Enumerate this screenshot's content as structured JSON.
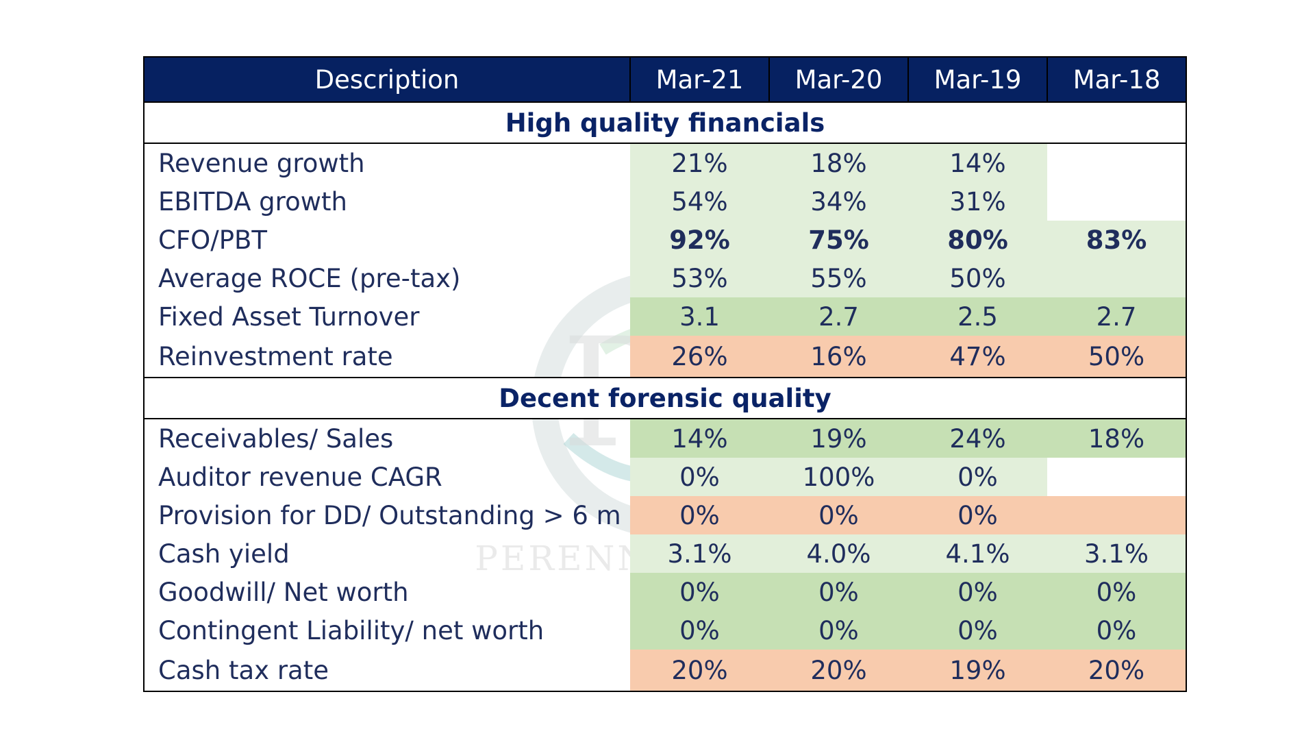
{
  "table": {
    "headers": [
      "Description",
      "Mar-21",
      "Mar-20",
      "Mar-19",
      "Mar-18"
    ],
    "sections": [
      {
        "title": "High quality financials",
        "rows": [
          {
            "label": "Revenue growth",
            "values": [
              "21%",
              "18%",
              "14%",
              ""
            ],
            "colors": [
              "#e2efda",
              "#e2efda",
              "#e2efda",
              "#ffffff"
            ]
          },
          {
            "label": "EBITDA growth",
            "values": [
              "54%",
              "34%",
              "31%",
              ""
            ],
            "colors": [
              "#e2efda",
              "#e2efda",
              "#e2efda",
              "#ffffff"
            ]
          },
          {
            "label": "CFO/PBT",
            "values": [
              "92%",
              "75%",
              "80%",
              "83%"
            ],
            "colors": [
              "#e2efda",
              "#e2efda",
              "#e2efda",
              "#e2efda"
            ],
            "bold": true
          },
          {
            "label": "Average ROCE (pre-tax)",
            "values": [
              "53%",
              "55%",
              "50%",
              ""
            ],
            "colors": [
              "#e2efda",
              "#e2efda",
              "#e2efda",
              "#e2efda"
            ]
          },
          {
            "label": "Fixed Asset Turnover",
            "values": [
              "3.1",
              "2.7",
              "2.5",
              "2.7"
            ],
            "colors": [
              "#c6e0b4",
              "#c6e0b4",
              "#c6e0b4",
              "#c6e0b4"
            ]
          },
          {
            "label": "Reinvestment rate",
            "values": [
              "26%",
              "16%",
              "47%",
              "50%"
            ],
            "colors": [
              "#f8cbad",
              "#f8cbad",
              "#f8cbad",
              "#f8cbad"
            ]
          }
        ]
      },
      {
        "title": "Decent forensic quality",
        "rows": [
          {
            "label": "Receivables/ Sales",
            "values": [
              "14%",
              "19%",
              "24%",
              "18%"
            ],
            "colors": [
              "#c6e0b4",
              "#c6e0b4",
              "#c6e0b4",
              "#c6e0b4"
            ]
          },
          {
            "label": "Auditor revenue CAGR",
            "values": [
              "0%",
              "100%",
              "0%",
              ""
            ],
            "colors": [
              "#e2efda",
              "#e2efda",
              "#e2efda",
              "#ffffff"
            ]
          },
          {
            "label": "Provision for DD/ Outstanding > 6 m",
            "values": [
              "0%",
              "0%",
              "0%",
              ""
            ],
            "colors": [
              "#f8cbad",
              "#f8cbad",
              "#f8cbad",
              "#f8cbad"
            ]
          },
          {
            "label": "Cash yield",
            "values": [
              "3.1%",
              "4.0%",
              "4.1%",
              "3.1%"
            ],
            "colors": [
              "#e2efda",
              "#e2efda",
              "#e2efda",
              "#e2efda"
            ]
          },
          {
            "label": "Goodwill/ Net worth",
            "values": [
              "0%",
              "0%",
              "0%",
              "0%"
            ],
            "colors": [
              "#c6e0b4",
              "#c6e0b4",
              "#c6e0b4",
              "#c6e0b4"
            ]
          },
          {
            "label": "Contingent Liability/ net worth",
            "values": [
              "0%",
              "0%",
              "0%",
              "0%"
            ],
            "colors": [
              "#c6e0b4",
              "#c6e0b4",
              "#c6e0b4",
              "#c6e0b4"
            ]
          },
          {
            "label": "Cash tax rate",
            "values": [
              "20%",
              "20%",
              "19%",
              "20%"
            ],
            "colors": [
              "#f8cbad",
              "#f8cbad",
              "#f8cbad",
              "#f8cbad"
            ]
          }
        ]
      }
    ]
  },
  "watermark": {
    "text": "PERENNIAL FUND",
    "monogram": "PF"
  },
  "colors": {
    "header_bg": "#062161",
    "text": "#1f2d5c",
    "section_title": "#0a2366"
  }
}
